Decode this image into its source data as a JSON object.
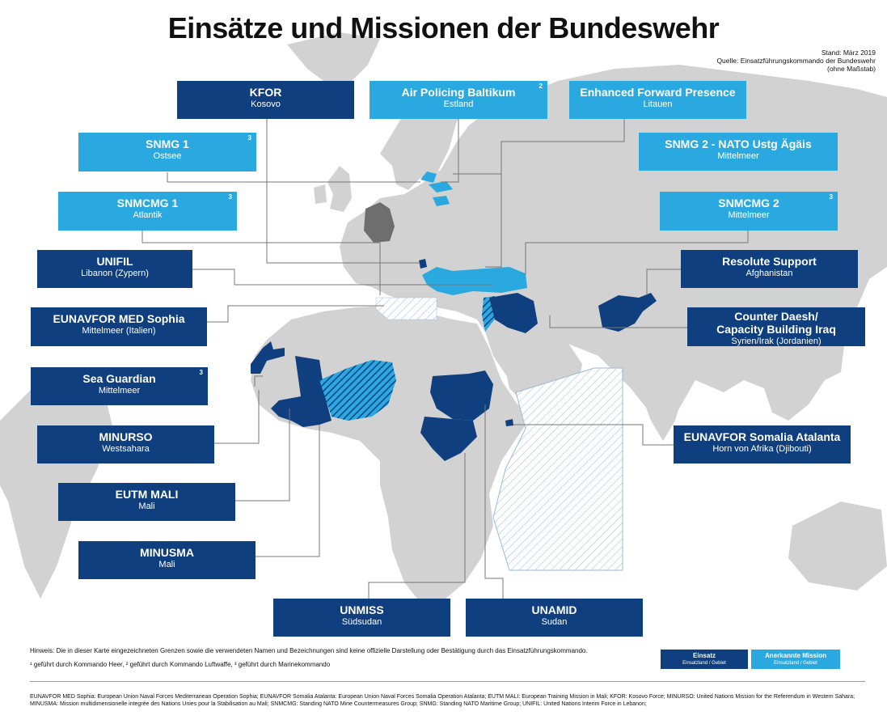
{
  "title": "Einsätze und Missionen der Bundeswehr",
  "meta": {
    "stand": "Stand: März 2019",
    "quelle": "Quelle: Einsatzführungskommando der Bundeswehr",
    "massstab": "(ohne Maßstab)"
  },
  "colors": {
    "einsatz": "#0f3f7f",
    "mission": "#2aa9e0",
    "land": "#d2d2d2",
    "germany": "#6e6e6e",
    "ocean": "#ffffff"
  },
  "boxes": {
    "kfor": {
      "title": "KFOR",
      "sub": "Kosovo",
      "sup": ""
    },
    "apb": {
      "title": "Air Policing Baltikum",
      "sub": "Estland",
      "sup": "2"
    },
    "efp": {
      "title": "Enhanced Forward Presence",
      "sub": "Litauen",
      "sup": ""
    },
    "snmg1": {
      "title": "SNMG 1",
      "sub": "Ostsee",
      "sup": "3"
    },
    "snmg2": {
      "title": "SNMG 2 - NATO Ustg Ägäis",
      "sub": "Mittelmeer",
      "sup": ""
    },
    "snmcmg1": {
      "title": "SNMCMG 1",
      "sub": "Atlantik",
      "sup": "3"
    },
    "snmcmg2": {
      "title": "SNMCMG 2",
      "sub": "Mittelmeer",
      "sup": "3"
    },
    "unifil": {
      "title": "UNIFIL",
      "sub": "Libanon (Zypern)",
      "sup": ""
    },
    "resolute": {
      "title": "Resolute Support",
      "sub": "Afghanistan",
      "sup": ""
    },
    "sophia": {
      "title": "EUNAVFOR MED Sophia",
      "sub": "Mittelmeer (Italien)",
      "sup": ""
    },
    "daesh": {
      "title": "Counter Daesh/",
      "title2": "Capacity Building Iraq",
      "sub": "Syrien/Irak (Jordanien)",
      "sup": ""
    },
    "seaguardian": {
      "title": "Sea Guardian",
      "sub": "Mittelmeer",
      "sup": "3"
    },
    "minurso": {
      "title": "MINURSO",
      "sub": "Westsahara",
      "sup": ""
    },
    "atalanta": {
      "title": "EUNAVFOR Somalia Atalanta",
      "sub": "Horn von Afrika (Djibouti)",
      "sup": ""
    },
    "eutm": {
      "title": "EUTM MALI",
      "sub": "Mali",
      "sup": ""
    },
    "minusma": {
      "title": "MINUSMA",
      "sub": "Mali",
      "sup": ""
    },
    "unmiss": {
      "title": "UNMISS",
      "sub": "Südsudan",
      "sup": ""
    },
    "unamid": {
      "title": "UNAMID",
      "sub": "Sudan",
      "sup": ""
    }
  },
  "notes": {
    "hinweis": "Hinweis: Die in dieser Karte eingezeichneten Grenzen sowie die verwendeten Namen und Bezeichnungen sind keine offizielle Darstellung oder Bestätigung durch das Einsatzführungskommando.",
    "fussnoten": "¹ geführt durch Kommando Heer, ² geführt durch Kommando Luftwaffe, ³ geführt durch Marinekommando"
  },
  "legend": {
    "einsatz": {
      "title": "Einsatz",
      "sub": "Einsatzland / Gebiet"
    },
    "mission": {
      "title": "Anerkannte Mission",
      "sub": "Einsatzland / Gebiet"
    }
  },
  "footer": "EUNAVFOR MED Sophia: European Union Naval Forces Mediterranean Operation Sophia; EUNAVFOR Somalia Atalanta: European Union Naval Forces Somalia Operation Atalanta; EUTM MALI:  European Training Mission in Mali; KFOR: Kosovo Force; MINURSO: United Nations Mission for the Referendum in Western Sahara; MINUSMA: Mission multidimensionelle integrée des Nations Unies pour la Stabilisation au Mali; SNMCMG: Standing NATO Mine Countermeasures Group; SNMG: Standing NATO Maritime Group; UNIFIL: United Nations Interim Force in Lebanon;"
}
